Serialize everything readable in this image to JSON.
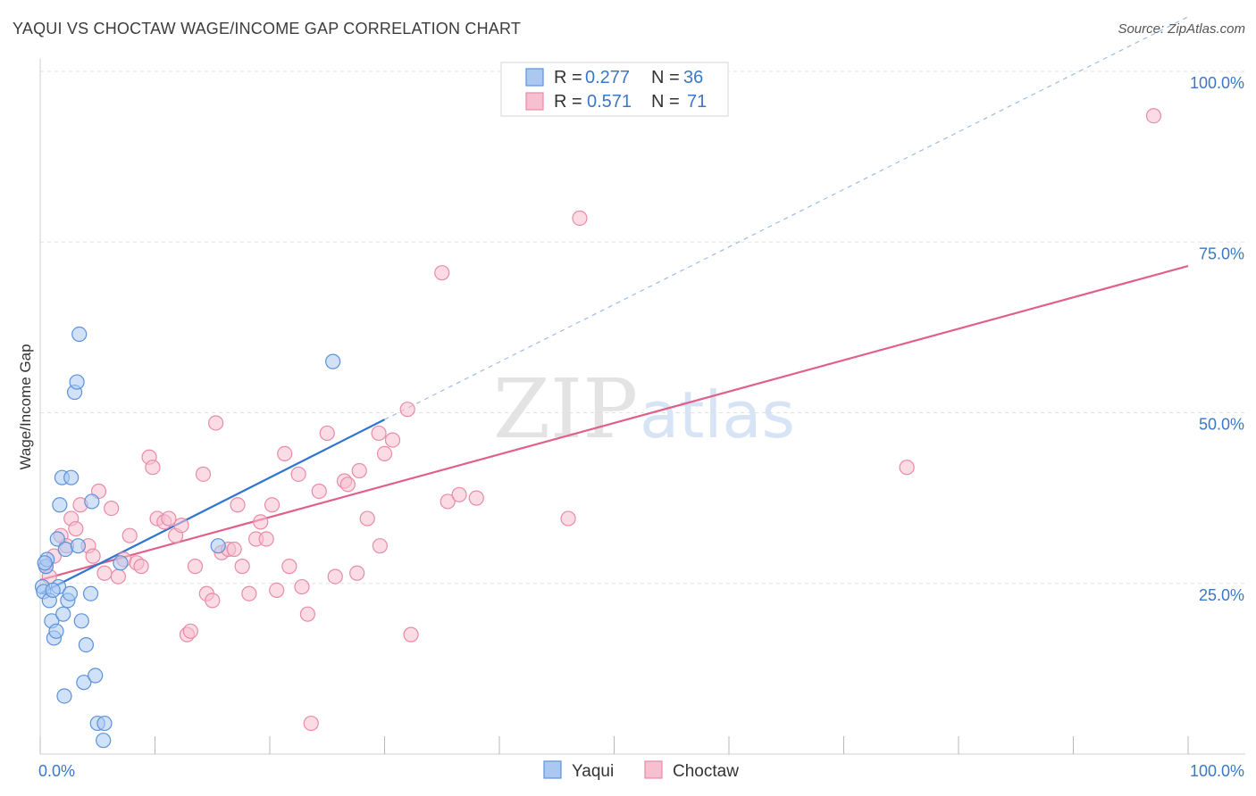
{
  "header": {
    "title": "YAQUI VS CHOCTAW WAGE/INCOME GAP CORRELATION CHART",
    "source": "Source: ZipAtlas.com"
  },
  "watermark": {
    "zip": "ZIP",
    "atlas": "atlas"
  },
  "colors": {
    "yaqui_fill": "#aac8f2",
    "yaqui_stroke": "#5b93d8",
    "yaqui_line": "#2f74d0",
    "choctaw_fill": "#f7c0d0",
    "choctaw_stroke": "#e98aa8",
    "choctaw_line": "#e0608a",
    "tick_label": "#3a77c8",
    "grid": "#dde2ea"
  },
  "chart_data": {
    "type": "scatter",
    "title": "YAQUI VS CHOCTAW WAGE/INCOME GAP CORRELATION CHART",
    "xlabel": "",
    "ylabel": "Wage/Income Gap",
    "xlim": [
      0,
      100
    ],
    "ylim": [
      0,
      100
    ],
    "x_tick_labels": [
      "0.0%",
      "100.0%"
    ],
    "y_ticks": [
      25,
      50,
      75,
      100
    ],
    "y_tick_labels": [
      "25.0%",
      "50.0%",
      "75.0%",
      "100.0%"
    ],
    "grid": true,
    "legend_position": "top-center",
    "stats": [
      {
        "name": "Yaqui",
        "r_label": "R =",
        "r": "0.277",
        "n_label": "N =",
        "n": "36"
      },
      {
        "name": "Choctaw",
        "r_label": "R =",
        "r": "0.571",
        "n_label": "N =",
        "n": "71"
      }
    ],
    "series": [
      {
        "name": "Yaqui",
        "trend": {
          "x1": 0,
          "y1": 23.5,
          "x2": 30,
          "y2": 49,
          "dashed_to_x": 100,
          "dashed_to_y": 108
        },
        "points": [
          [
            0.2,
            24.5
          ],
          [
            0.3,
            23.8
          ],
          [
            0.5,
            27.5
          ],
          [
            0.6,
            28.5
          ],
          [
            0.8,
            22.5
          ],
          [
            1.0,
            19.5
          ],
          [
            1.2,
            17
          ],
          [
            1.4,
            18
          ],
          [
            1.5,
            31.5
          ],
          [
            1.6,
            24.5
          ],
          [
            1.7,
            36.5
          ],
          [
            1.9,
            40.5
          ],
          [
            2.0,
            20.5
          ],
          [
            2.1,
            8.5
          ],
          [
            2.2,
            30
          ],
          [
            2.4,
            22.5
          ],
          [
            2.6,
            23.5
          ],
          [
            2.7,
            40.5
          ],
          [
            3.0,
            53
          ],
          [
            3.2,
            54.5
          ],
          [
            3.3,
            30.5
          ],
          [
            3.4,
            61.5
          ],
          [
            3.6,
            19.5
          ],
          [
            3.8,
            10.5
          ],
          [
            4.0,
            16
          ],
          [
            4.4,
            23.5
          ],
          [
            4.5,
            37
          ],
          [
            4.8,
            11.5
          ],
          [
            5.0,
            4.5
          ],
          [
            5.5,
            2
          ],
          [
            5.6,
            4.5
          ],
          [
            7.0,
            28
          ],
          [
            15.5,
            30.5
          ],
          [
            25.5,
            57.5
          ],
          [
            0.4,
            28
          ],
          [
            1.1,
            24
          ]
        ]
      },
      {
        "name": "Choctaw",
        "trend": {
          "x1": 0,
          "y1": 25.5,
          "x2": 100,
          "y2": 71.5
        },
        "points": [
          [
            0.5,
            27.5
          ],
          [
            1.2,
            29
          ],
          [
            1.8,
            32
          ],
          [
            2.3,
            30.5
          ],
          [
            2.7,
            34.5
          ],
          [
            3.1,
            33
          ],
          [
            3.5,
            36.5
          ],
          [
            4.2,
            30.5
          ],
          [
            4.6,
            29
          ],
          [
            5.1,
            38.5
          ],
          [
            5.6,
            26.5
          ],
          [
            6.2,
            36
          ],
          [
            6.8,
            26
          ],
          [
            7.3,
            28.5
          ],
          [
            7.8,
            32
          ],
          [
            8.4,
            28
          ],
          [
            8.8,
            27.5
          ],
          [
            9.5,
            43.5
          ],
          [
            9.8,
            42
          ],
          [
            10.2,
            34.5
          ],
          [
            10.8,
            34
          ],
          [
            11.2,
            34.5
          ],
          [
            11.8,
            32
          ],
          [
            12.3,
            33.5
          ],
          [
            12.8,
            17.5
          ],
          [
            13.1,
            18
          ],
          [
            13.5,
            27.5
          ],
          [
            14.2,
            41
          ],
          [
            14.5,
            23.5
          ],
          [
            15.0,
            22.5
          ],
          [
            15.3,
            48.5
          ],
          [
            15.8,
            29.5
          ],
          [
            16.4,
            30
          ],
          [
            16.9,
            30
          ],
          [
            17.2,
            36.5
          ],
          [
            17.6,
            27.5
          ],
          [
            18.2,
            23.5
          ],
          [
            18.8,
            31.5
          ],
          [
            19.2,
            34
          ],
          [
            19.7,
            31.5
          ],
          [
            20.2,
            36.5
          ],
          [
            20.6,
            24
          ],
          [
            21.3,
            44
          ],
          [
            21.7,
            27.5
          ],
          [
            22.5,
            41
          ],
          [
            22.8,
            24.5
          ],
          [
            23.3,
            20.5
          ],
          [
            23.6,
            4.5
          ],
          [
            24.3,
            38.5
          ],
          [
            25.0,
            47
          ],
          [
            25.7,
            26
          ],
          [
            26.5,
            40
          ],
          [
            26.8,
            39.5
          ],
          [
            27.6,
            26.5
          ],
          [
            27.8,
            41.5
          ],
          [
            28.5,
            34.5
          ],
          [
            29.5,
            47
          ],
          [
            29.6,
            30.5
          ],
          [
            30.0,
            44
          ],
          [
            30.7,
            46
          ],
          [
            32.0,
            50.5
          ],
          [
            32.3,
            17.5
          ],
          [
            35.0,
            70.5
          ],
          [
            35.5,
            37
          ],
          [
            36.5,
            38
          ],
          [
            38.0,
            37.5
          ],
          [
            46.0,
            34.5
          ],
          [
            47.0,
            78.5
          ],
          [
            75.5,
            42
          ],
          [
            97.0,
            93.5
          ],
          [
            0.8,
            26
          ]
        ]
      }
    ]
  },
  "bottom_legend": {
    "items": [
      "Yaqui",
      "Choctaw"
    ]
  }
}
